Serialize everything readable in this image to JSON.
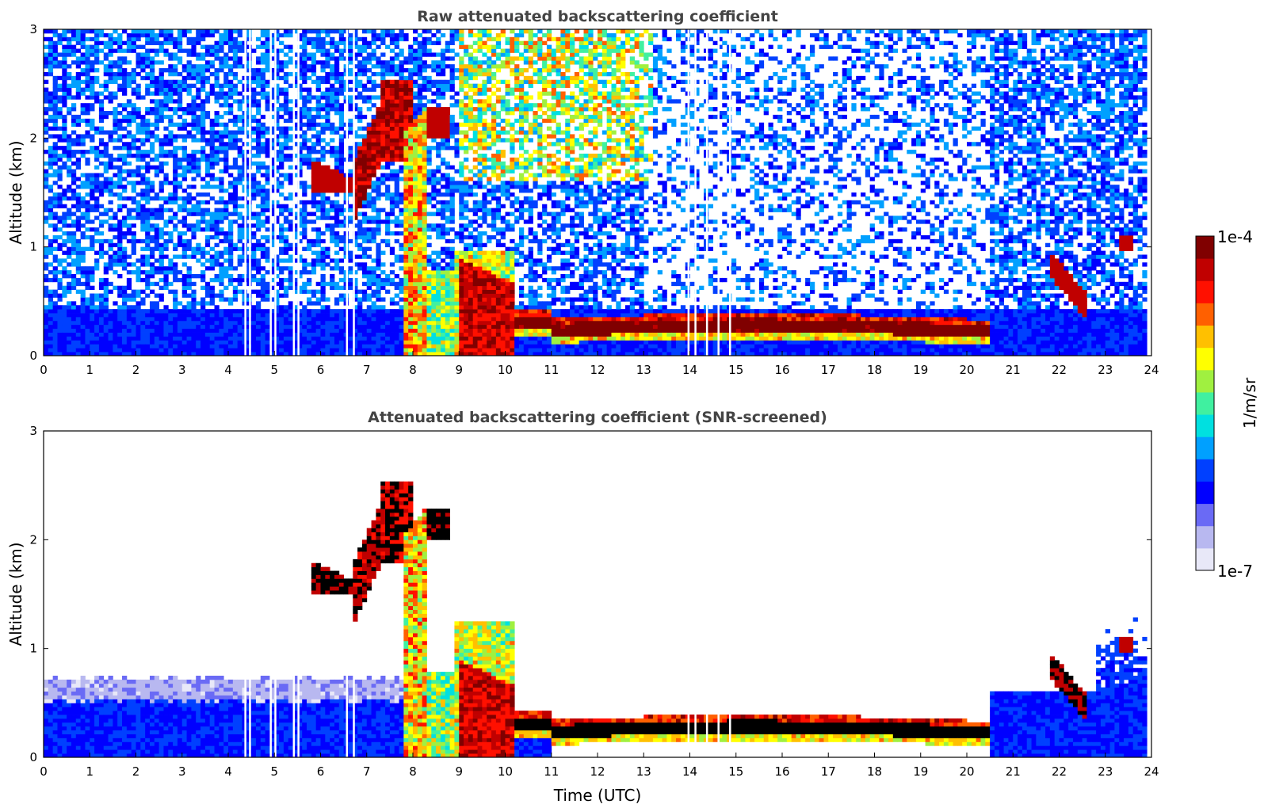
{
  "chart_data": [
    {
      "type": "heatmap",
      "title": "Raw attenuated backscattering coefficient",
      "xlabel": "",
      "ylabel": "Altitude (km)",
      "xlim": [
        0,
        24
      ],
      "ylim": [
        0,
        3
      ],
      "x_ticks": [
        "0",
        "1",
        "2",
        "3",
        "4",
        "5",
        "6",
        "7",
        "8",
        "9",
        "10",
        "11",
        "12",
        "13",
        "14",
        "15",
        "16",
        "17",
        "18",
        "19",
        "20",
        "21",
        "22",
        "23",
        "24"
      ],
      "y_ticks": [
        "0",
        "1",
        "2",
        "3"
      ],
      "data_end_hour": 23.85,
      "missing_profile_hours": [
        4.35,
        4.45,
        4.9,
        5.0,
        5.4,
        5.5,
        6.55,
        6.7,
        13.95,
        14.1,
        14.35,
        14.6,
        14.85
      ],
      "features": [
        {
          "name": "boundary layer aerosol",
          "x_range": [
            0,
            23.85
          ],
          "altitude_km": [
            0,
            0.45
          ],
          "level": "low"
        },
        {
          "name": "cloud layer",
          "x_range": [
            10.2,
            20.5
          ],
          "altitude_km": [
            0.15,
            0.35
          ],
          "level": "high"
        },
        {
          "name": "rain/fog",
          "x_range": [
            9.0,
            10.2
          ],
          "altitude_km": [
            0,
            0.9
          ],
          "level": "high"
        },
        {
          "name": "elevated cloud",
          "x_range": [
            5.8,
            8.7
          ],
          "altitude_km": [
            1.2,
            2.6
          ],
          "level": "high"
        },
        {
          "name": "precipitation column",
          "x_range": [
            7.8,
            8.3
          ],
          "altitude_km": [
            0,
            2.3
          ],
          "level": "medium"
        },
        {
          "name": "upper noise",
          "x_range": [
            0,
            23.85
          ],
          "altitude_km": [
            0.45,
            3.0
          ],
          "level": "noise"
        }
      ]
    },
    {
      "type": "heatmap",
      "title": "Attenuated backscattering coefficient (SNR-screened)",
      "xlabel": "Time (UTC)",
      "ylabel": "Altitude (km)",
      "xlim": [
        0,
        24
      ],
      "ylim": [
        0,
        3
      ],
      "x_ticks": [
        "0",
        "1",
        "2",
        "3",
        "4",
        "5",
        "6",
        "7",
        "8",
        "9",
        "10",
        "11",
        "12",
        "13",
        "14",
        "15",
        "16",
        "17",
        "18",
        "19",
        "20",
        "21",
        "22",
        "23",
        "24"
      ],
      "y_ticks": [
        "0",
        "1",
        "2",
        "3"
      ],
      "data_end_hour": 23.85,
      "missing_profile_hours": [
        4.35,
        4.45,
        4.9,
        5.0,
        5.4,
        5.5,
        6.55,
        6.7,
        13.95,
        14.1,
        14.35,
        14.6,
        14.85
      ],
      "features": [
        {
          "name": "boundary layer aerosol",
          "x_range": [
            0,
            8.0
          ],
          "altitude_km": [
            0,
            0.75
          ],
          "level": "low"
        },
        {
          "name": "cloud layer (saturated)",
          "x_range": [
            10.2,
            20.5
          ],
          "altitude_km": [
            0.15,
            0.35
          ],
          "level": "saturated"
        },
        {
          "name": "rain/fog",
          "x_range": [
            9.0,
            10.2
          ],
          "altitude_km": [
            0,
            1.25
          ],
          "level": "high"
        },
        {
          "name": "elevated cloud (saturated)",
          "x_range": [
            5.8,
            8.7
          ],
          "altitude_km": [
            1.2,
            2.6
          ],
          "level": "saturated"
        },
        {
          "name": "late-day aerosol",
          "x_range": [
            20.5,
            23.85
          ],
          "altitude_km": [
            0,
            1.4
          ],
          "level": "low"
        }
      ]
    }
  ],
  "colorbar": {
    "label": "1/m/sr",
    "max_label": "1e-4",
    "min_label": "1e-7",
    "scale": "log",
    "range": [
      1e-07,
      0.0001
    ],
    "colormap": [
      "#e8e8f8",
      "#b8b8f0",
      "#6a6af5",
      "#0000ff",
      "#0040ff",
      "#00a0ff",
      "#00e0e0",
      "#40f0a0",
      "#a0f040",
      "#ffff00",
      "#ffc000",
      "#ff6000",
      "#ff1000",
      "#c00000",
      "#800000"
    ]
  }
}
